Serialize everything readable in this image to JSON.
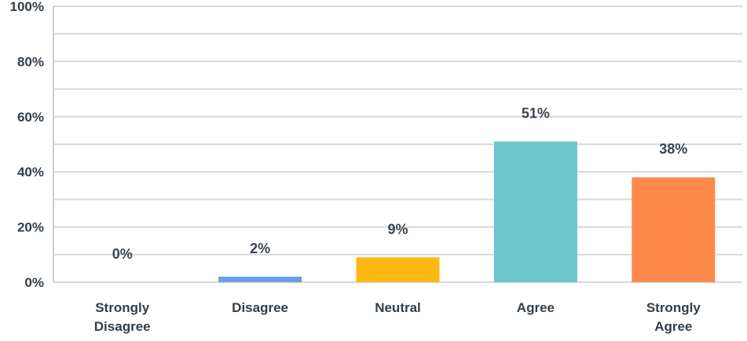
{
  "chart_data": {
    "type": "bar",
    "categories": [
      "Strongly Disagree",
      "Disagree",
      "Neutral",
      "Agree",
      "Strongly Agree"
    ],
    "category_lines": [
      [
        "Strongly",
        "Disagree"
      ],
      [
        "Disagree"
      ],
      [
        "Neutral"
      ],
      [
        "Agree"
      ],
      [
        "Strongly",
        "Agree"
      ]
    ],
    "values": [
      0,
      2,
      9,
      51,
      38
    ],
    "data_labels": [
      "0%",
      "2%",
      "9%",
      "51%",
      "38%"
    ],
    "colors": [
      "#6c9de8",
      "#6c9de8",
      "#fdb913",
      "#6cc6cc",
      "#fd8a4b"
    ],
    "y_ticks": [
      0,
      20,
      40,
      60,
      80,
      100
    ],
    "y_tick_labels": [
      "0%",
      "20%",
      "40%",
      "60%",
      "80%",
      "100%"
    ],
    "ylim": [
      0,
      100
    ],
    "grid": true,
    "title": "",
    "xlabel": "",
    "ylabel": ""
  }
}
